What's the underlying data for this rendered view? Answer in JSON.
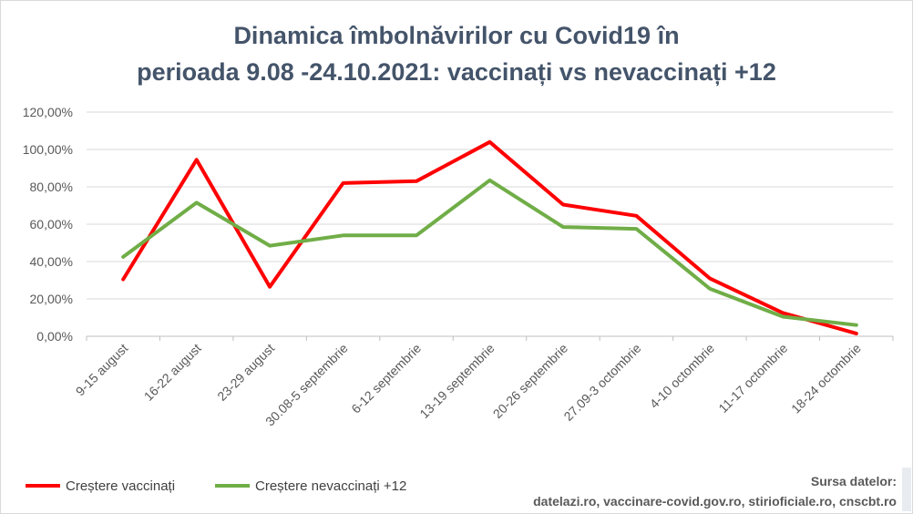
{
  "title_line1": "Dinamica îmbolnăvirilor cu Covid19 în",
  "title_line2": "perioada 9.08 -24.10.2021: vaccinați vs nevaccinați +12",
  "source_label": "Sursa datelor:",
  "source_text": "datelazi.ro, vaccinare-covid.gov.ro, stirioficiale.ro, cnscbt.ro",
  "chart_data": {
    "type": "line",
    "title": "Dinamica îmbolnăvirilor cu Covid19 în perioada 9.08 -24.10.2021: vaccinați vs nevaccinați +12",
    "categories": [
      "9-15 august",
      "16-22 august",
      "23-29 august",
      "30.08-5 septembrie",
      "6-12 septembrie",
      "13-19 septembrie",
      "20-26 septembrie",
      "27.09-3 octombrie",
      "4-10 octombrie",
      "11-17 octombrie",
      "18-24 octombrie"
    ],
    "y_ticks": [
      "0,00%",
      "20,00%",
      "40,00%",
      "60,00%",
      "80,00%",
      "100,00%",
      "120,00%"
    ],
    "ylim": [
      0,
      120
    ],
    "y_unit": "%",
    "grid": true,
    "legend_position": "bottom-left",
    "series": [
      {
        "name": "Creștere vaccinați",
        "color": "#ff0000",
        "values": [
          30.5,
          94.5,
          26.5,
          82,
          83,
          104,
          70.5,
          64.5,
          31,
          12.5,
          1.5
        ]
      },
      {
        "name": "Creștere nevaccinați +12",
        "color": "#70ad47",
        "values": [
          42.5,
          71.5,
          48.5,
          54,
          54,
          83.5,
          58.5,
          57.5,
          25.5,
          10.5,
          6
        ]
      }
    ]
  }
}
